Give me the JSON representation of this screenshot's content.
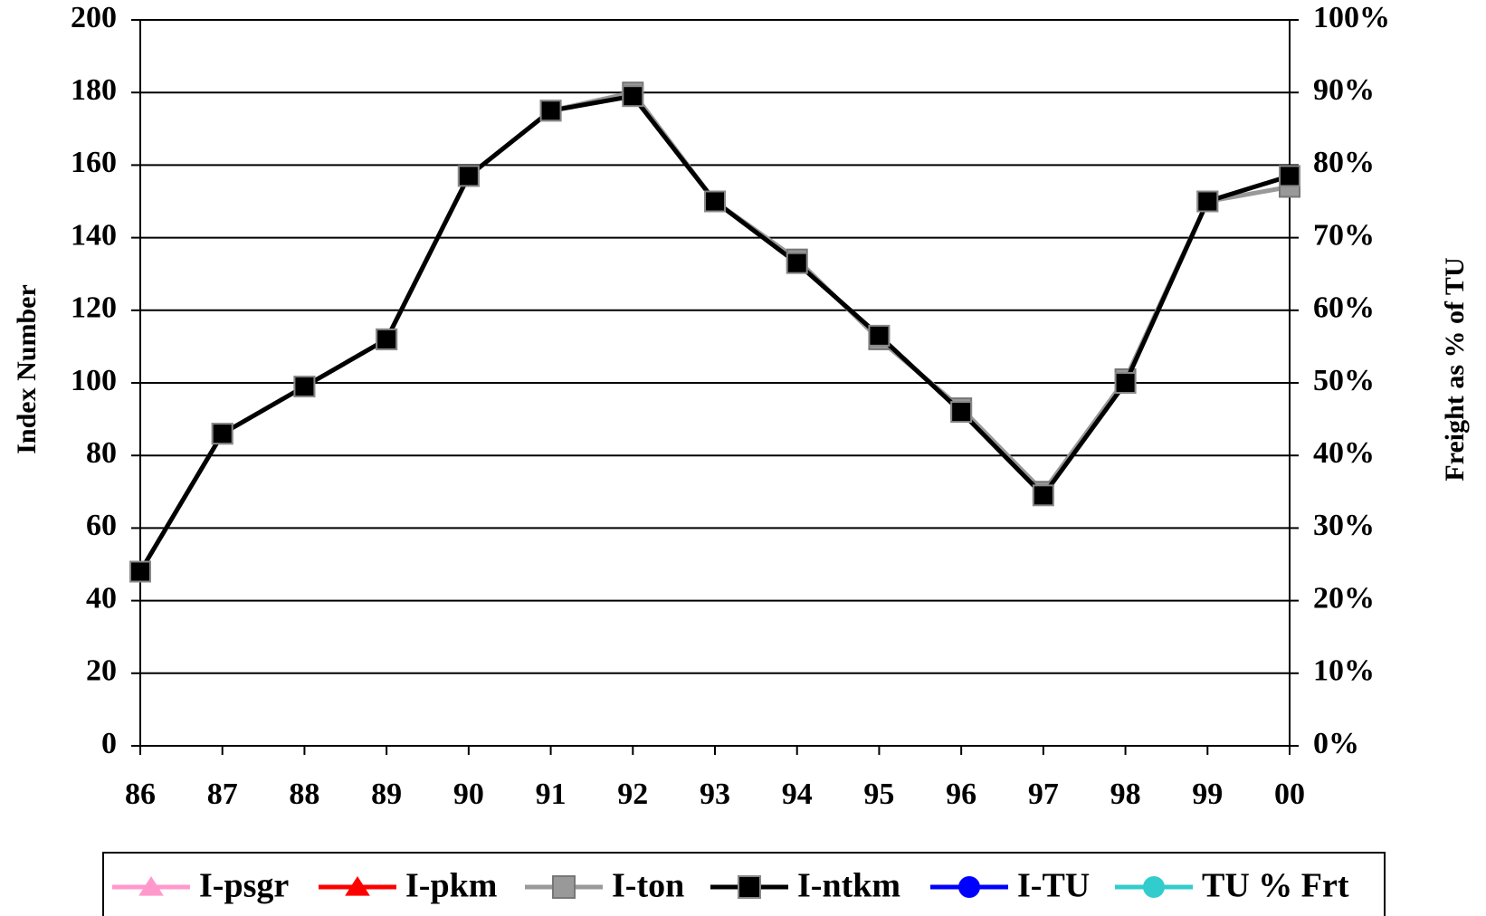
{
  "chart_data": {
    "type": "line",
    "categories": [
      "86",
      "87",
      "88",
      "89",
      "90",
      "91",
      "92",
      "93",
      "94",
      "95",
      "96",
      "97",
      "98",
      "99",
      "00"
    ],
    "y_label": "Index Number",
    "y2_label": "Freight as % of TU",
    "ylim": [
      0,
      200
    ],
    "yticks": [
      0,
      20,
      40,
      60,
      80,
      100,
      120,
      140,
      160,
      180,
      200
    ],
    "y2lim": [
      0,
      100
    ],
    "y2ticks": [
      {
        "value": 0,
        "label": "0%"
      },
      {
        "value": 10,
        "label": "10%"
      },
      {
        "value": 20,
        "label": "20%"
      },
      {
        "value": 30,
        "label": "30%"
      },
      {
        "value": 40,
        "label": "40%"
      },
      {
        "value": 50,
        "label": "50%"
      },
      {
        "value": 60,
        "label": "60%"
      },
      {
        "value": 70,
        "label": "70%"
      },
      {
        "value": 80,
        "label": "80%"
      },
      {
        "value": 90,
        "label": "90%"
      },
      {
        "value": 100,
        "label": "100%"
      }
    ],
    "grid": true,
    "legend": "bottom",
    "series": [
      {
        "name": "I-psgr",
        "color": "#ff99cc",
        "marker": "triangle",
        "values": [
          null,
          null,
          null,
          null,
          null,
          null,
          null,
          null,
          null,
          null,
          null,
          null,
          null,
          null,
          null
        ]
      },
      {
        "name": "I-pkm",
        "color": "#ff0000",
        "marker": "triangle",
        "values": [
          null,
          null,
          null,
          null,
          null,
          null,
          null,
          null,
          null,
          null,
          null,
          null,
          null,
          null,
          null
        ]
      },
      {
        "name": "I-ton",
        "color": "#999999",
        "marker": "square",
        "values": [
          48,
          86,
          99,
          112,
          157,
          175,
          180,
          150,
          134,
          112,
          93,
          70,
          101,
          150,
          154
        ]
      },
      {
        "name": "I-ntkm",
        "color": "#000000",
        "marker": "square",
        "values": [
          48,
          86,
          99,
          112,
          157,
          175,
          179,
          150,
          133,
          113,
          92,
          69,
          100,
          150,
          157
        ]
      },
      {
        "name": "I-TU",
        "color": "#0000ff",
        "marker": "circle",
        "axis": "y2",
        "values": [
          null,
          null,
          null,
          null,
          null,
          null,
          null,
          null,
          null,
          null,
          null,
          null,
          null,
          null,
          null
        ]
      },
      {
        "name": "TU % Frt",
        "color": "#33cccc",
        "marker": "circle",
        "axis": "y2",
        "values": [
          null,
          null,
          null,
          null,
          null,
          null,
          null,
          null,
          null,
          null,
          null,
          null,
          null,
          null,
          null
        ]
      }
    ]
  }
}
